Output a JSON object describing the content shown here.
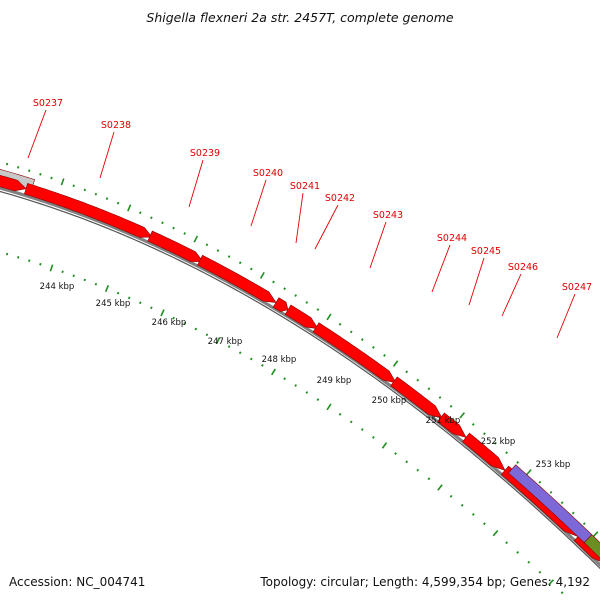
{
  "header": {
    "title": "Shigella flexneri 2a str. 2457T, complete genome"
  },
  "footer": {
    "accession": "Accession: NC_004741",
    "summary": "Topology: circular; Length: 4,599,354 bp; Genes: 4,192"
  },
  "colors": {
    "gene_forward": "#ff0000",
    "gene_grey": "#c8c8c8",
    "gene_purple": "#7d68d8",
    "gene_olive": "#6b8e23",
    "backbone": "#808080",
    "tick": "#1f8f1f",
    "label": "#e00000"
  },
  "genes": [
    {
      "name": "S0237"
    },
    {
      "name": "S0238"
    },
    {
      "name": "S0239"
    },
    {
      "name": "S0240"
    },
    {
      "name": "S0241"
    },
    {
      "name": "S0242"
    },
    {
      "name": "S0243"
    },
    {
      "name": "S0244"
    },
    {
      "name": "S0245"
    },
    {
      "name": "S0246"
    },
    {
      "name": "S0247"
    }
  ],
  "kbp_labels": [
    "244 kbp",
    "245 kbp",
    "246 kbp",
    "247 kbp",
    "248 kbp",
    "249 kbp",
    "250 kbp",
    "251 kbp",
    "252 kbp",
    "253 kbp"
  ]
}
